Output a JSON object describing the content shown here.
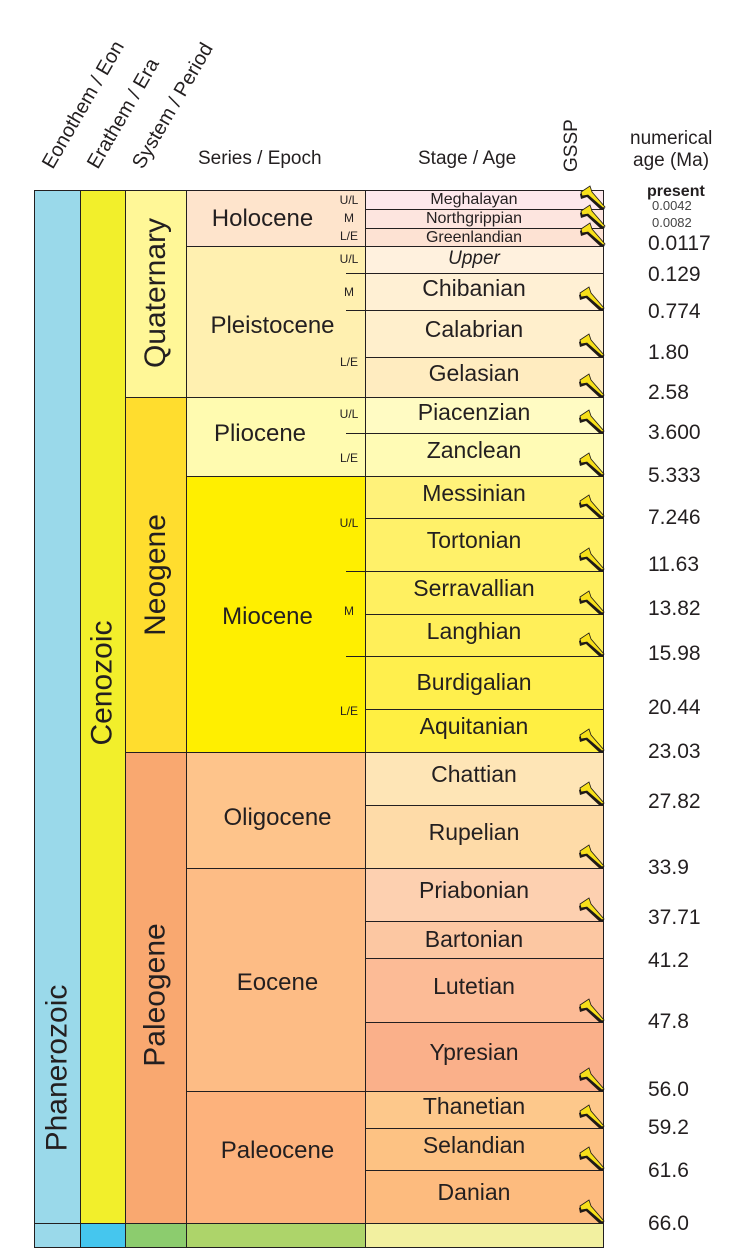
{
  "headers": {
    "eon": "Eonothem / Eon",
    "era": "Erathem / Era",
    "period": "System / Period",
    "epoch": "Series / Epoch",
    "stage": "Stage / Age",
    "gssp": "GSSP",
    "age_line1": "numerical",
    "age_line2": "age (Ma)"
  },
  "eon": {
    "name": "Phanerozoic",
    "color": "#9ad9ea"
  },
  "era": {
    "name": "Cenozoic",
    "color": "#f2ef2b"
  },
  "periods": [
    {
      "name": "Quaternary",
      "color": "#fff797"
    },
    {
      "name": "Neogene",
      "color": "#ffdd2e"
    },
    {
      "name": "Paleogene",
      "color": "#f9a870"
    }
  ],
  "epochs": [
    {
      "name": "Holocene",
      "color": "#fee4cc",
      "subs": [
        "U/L",
        "M",
        "L/E"
      ]
    },
    {
      "name": "Pleistocene",
      "color": "#fff0b0",
      "subs": [
        "U/L",
        "M",
        "L/E"
      ]
    },
    {
      "name": "Pliocene",
      "color": "#fffbb0",
      "subs": [
        "U/L",
        "L/E"
      ]
    },
    {
      "name": "Miocene",
      "color": "#ffef00",
      "subs": [
        "U/L",
        "M",
        "L/E"
      ]
    },
    {
      "name": "Oligocene",
      "color": "#fec48b",
      "subs": []
    },
    {
      "name": "Eocene",
      "color": "#fdbc85",
      "subs": []
    },
    {
      "name": "Paleocene",
      "color": "#fdb27c",
      "subs": []
    }
  ],
  "stages": [
    {
      "name": "Meghalayan",
      "color": "#fde8ec",
      "gssp": true
    },
    {
      "name": "Northgrippian",
      "color": "#fde5df",
      "gssp": true
    },
    {
      "name": "Greenlandian",
      "color": "#fde2d3",
      "gssp": true
    },
    {
      "name": "Upper",
      "color": "#fff1de",
      "gssp": false
    },
    {
      "name": "Chibanian",
      "color": "#fff0d4",
      "gssp": true
    },
    {
      "name": "Calabrian",
      "color": "#ffefcc",
      "gssp": true
    },
    {
      "name": "Gelasian",
      "color": "#ffecc0",
      "gssp": true
    },
    {
      "name": "Piacenzian",
      "color": "#fffbc3",
      "gssp": true
    },
    {
      "name": "Zanclean",
      "color": "#fffbb5",
      "gssp": true
    },
    {
      "name": "Messinian",
      "color": "#fff27a",
      "gssp": true
    },
    {
      "name": "Tortonian",
      "color": "#fff169",
      "gssp": true
    },
    {
      "name": "Serravallian",
      "color": "#fff060",
      "gssp": true
    },
    {
      "name": "Langhian",
      "color": "#ffef59",
      "gssp": true
    },
    {
      "name": "Burdigalian",
      "color": "#ffef4d",
      "gssp": false
    },
    {
      "name": "Aquitanian",
      "color": "#ffef42",
      "gssp": true
    },
    {
      "name": "Chattian",
      "color": "#fee5b6",
      "gssp": true
    },
    {
      "name": "Rupelian",
      "color": "#fedba8",
      "gssp": true
    },
    {
      "name": "Priabonian",
      "color": "#fdd0b0",
      "gssp": true
    },
    {
      "name": "Bartonian",
      "color": "#fcc7a2",
      "gssp": false
    },
    {
      "name": "Lutetian",
      "color": "#fcbb96",
      "gssp": true
    },
    {
      "name": "Ypresian",
      "color": "#fab08a",
      "gssp": true
    },
    {
      "name": "Thanetian",
      "color": "#fdc88b",
      "gssp": true
    },
    {
      "name": "Selandian",
      "color": "#fdc283",
      "gssp": true
    },
    {
      "name": "Danian",
      "color": "#fdbb7e",
      "gssp": true
    }
  ],
  "ages": [
    {
      "value": "present",
      "style": "bold-small"
    },
    {
      "value": "0.0042",
      "style": "small"
    },
    {
      "value": "0.0082",
      "style": "small"
    },
    {
      "value": "0.0117",
      "style": "normal"
    },
    {
      "value": "0.129",
      "style": "normal"
    },
    {
      "value": "0.774",
      "style": "normal"
    },
    {
      "value": "1.80",
      "style": "normal"
    },
    {
      "value": "2.58",
      "style": "normal"
    },
    {
      "value": "3.600",
      "style": "normal"
    },
    {
      "value": "5.333",
      "style": "normal"
    },
    {
      "value": "7.246",
      "style": "normal"
    },
    {
      "value": "11.63",
      "style": "normal"
    },
    {
      "value": "13.82",
      "style": "normal"
    },
    {
      "value": "15.98",
      "style": "normal"
    },
    {
      "value": "20.44",
      "style": "normal"
    },
    {
      "value": "23.03",
      "style": "normal"
    },
    {
      "value": "27.82",
      "style": "normal"
    },
    {
      "value": "33.9",
      "style": "normal"
    },
    {
      "value": "37.71",
      "style": "normal"
    },
    {
      "value": "41.2",
      "style": "normal"
    },
    {
      "value": "47.8",
      "style": "normal"
    },
    {
      "value": "56.0",
      "style": "normal"
    },
    {
      "value": "59.2",
      "style": "normal"
    },
    {
      "value": "61.6",
      "style": "normal"
    },
    {
      "value": "66.0",
      "style": "normal"
    }
  ],
  "bottom_strip": {
    "eon": "#45c6ee",
    "period": "#8ccc6e",
    "epoch": "#add46a",
    "stage": "#f2f0a0"
  },
  "chart_data": {
    "type": "table",
    "title": "Cenozoic chronostratigraphic chart",
    "columns": [
      "Eonothem / Eon",
      "Erathem / Era",
      "System / Period",
      "Series / Epoch",
      "Stage / Age",
      "GSSP",
      "numerical age (Ma)"
    ],
    "eon": "Phanerozoic",
    "era": "Cenozoic",
    "rows": [
      {
        "period": "Quaternary",
        "epoch": "Holocene",
        "sub": "U/L",
        "stage": "Meghalayan",
        "gssp": true,
        "top_ma": "present",
        "base_ma": 0.0042
      },
      {
        "period": "Quaternary",
        "epoch": "Holocene",
        "sub": "M",
        "stage": "Northgrippian",
        "gssp": true,
        "top_ma": 0.0042,
        "base_ma": 0.0082
      },
      {
        "period": "Quaternary",
        "epoch": "Holocene",
        "sub": "L/E",
        "stage": "Greenlandian",
        "gssp": true,
        "top_ma": 0.0082,
        "base_ma": 0.0117
      },
      {
        "period": "Quaternary",
        "epoch": "Pleistocene",
        "sub": "U/L",
        "stage": "Upper",
        "gssp": false,
        "top_ma": 0.0117,
        "base_ma": 0.129
      },
      {
        "period": "Quaternary",
        "epoch": "Pleistocene",
        "sub": "M",
        "stage": "Chibanian",
        "gssp": true,
        "top_ma": 0.129,
        "base_ma": 0.774
      },
      {
        "period": "Quaternary",
        "epoch": "Pleistocene",
        "sub": "L/E",
        "stage": "Calabrian",
        "gssp": true,
        "top_ma": 0.774,
        "base_ma": 1.8
      },
      {
        "period": "Quaternary",
        "epoch": "Pleistocene",
        "sub": "L/E",
        "stage": "Gelasian",
        "gssp": true,
        "top_ma": 1.8,
        "base_ma": 2.58
      },
      {
        "period": "Neogene",
        "epoch": "Pliocene",
        "sub": "U/L",
        "stage": "Piacenzian",
        "gssp": true,
        "top_ma": 2.58,
        "base_ma": 3.6
      },
      {
        "period": "Neogene",
        "epoch": "Pliocene",
        "sub": "L/E",
        "stage": "Zanclean",
        "gssp": true,
        "top_ma": 3.6,
        "base_ma": 5.333
      },
      {
        "period": "Neogene",
        "epoch": "Miocene",
        "sub": "U/L",
        "stage": "Messinian",
        "gssp": true,
        "top_ma": 5.333,
        "base_ma": 7.246
      },
      {
        "period": "Neogene",
        "epoch": "Miocene",
        "sub": "U/L",
        "stage": "Tortonian",
        "gssp": true,
        "top_ma": 7.246,
        "base_ma": 11.63
      },
      {
        "period": "Neogene",
        "epoch": "Miocene",
        "sub": "M",
        "stage": "Serravallian",
        "gssp": true,
        "top_ma": 11.63,
        "base_ma": 13.82
      },
      {
        "period": "Neogene",
        "epoch": "Miocene",
        "sub": "M",
        "stage": "Langhian",
        "gssp": true,
        "top_ma": 13.82,
        "base_ma": 15.98
      },
      {
        "period": "Neogene",
        "epoch": "Miocene",
        "sub": "L/E",
        "stage": "Burdigalian",
        "gssp": false,
        "top_ma": 15.98,
        "base_ma": 20.44
      },
      {
        "period": "Neogene",
        "epoch": "Miocene",
        "sub": "L/E",
        "stage": "Aquitanian",
        "gssp": true,
        "top_ma": 20.44,
        "base_ma": 23.03
      },
      {
        "period": "Paleogene",
        "epoch": "Oligocene",
        "stage": "Chattian",
        "gssp": true,
        "top_ma": 23.03,
        "base_ma": 27.82
      },
      {
        "period": "Paleogene",
        "epoch": "Oligocene",
        "stage": "Rupelian",
        "gssp": true,
        "top_ma": 27.82,
        "base_ma": 33.9
      },
      {
        "period": "Paleogene",
        "epoch": "Eocene",
        "stage": "Priabonian",
        "gssp": true,
        "top_ma": 33.9,
        "base_ma": 37.71
      },
      {
        "period": "Paleogene",
        "epoch": "Eocene",
        "stage": "Bartonian",
        "gssp": false,
        "top_ma": 37.71,
        "base_ma": 41.2
      },
      {
        "period": "Paleogene",
        "epoch": "Eocene",
        "stage": "Lutetian",
        "gssp": true,
        "top_ma": 41.2,
        "base_ma": 47.8
      },
      {
        "period": "Paleogene",
        "epoch": "Eocene",
        "stage": "Ypresian",
        "gssp": true,
        "top_ma": 47.8,
        "base_ma": 56.0
      },
      {
        "period": "Paleogene",
        "epoch": "Paleocene",
        "stage": "Thanetian",
        "gssp": true,
        "top_ma": 56.0,
        "base_ma": 59.2
      },
      {
        "period": "Paleogene",
        "epoch": "Paleocene",
        "stage": "Selandian",
        "gssp": true,
        "top_ma": 59.2,
        "base_ma": 61.6
      },
      {
        "period": "Paleogene",
        "epoch": "Paleocene",
        "stage": "Danian",
        "gssp": true,
        "top_ma": 61.6,
        "base_ma": 66.0
      }
    ],
    "age_ticks": [
      "present",
      "0.0042",
      "0.0082",
      "0.0117",
      "0.129",
      "0.774",
      "1.80",
      "2.58",
      "3.600",
      "5.333",
      "7.246",
      "11.63",
      "13.82",
      "15.98",
      "20.44",
      "23.03",
      "27.82",
      "33.9",
      "37.71",
      "41.2",
      "47.8",
      "56.0",
      "59.2",
      "61.6",
      "66.0"
    ]
  }
}
